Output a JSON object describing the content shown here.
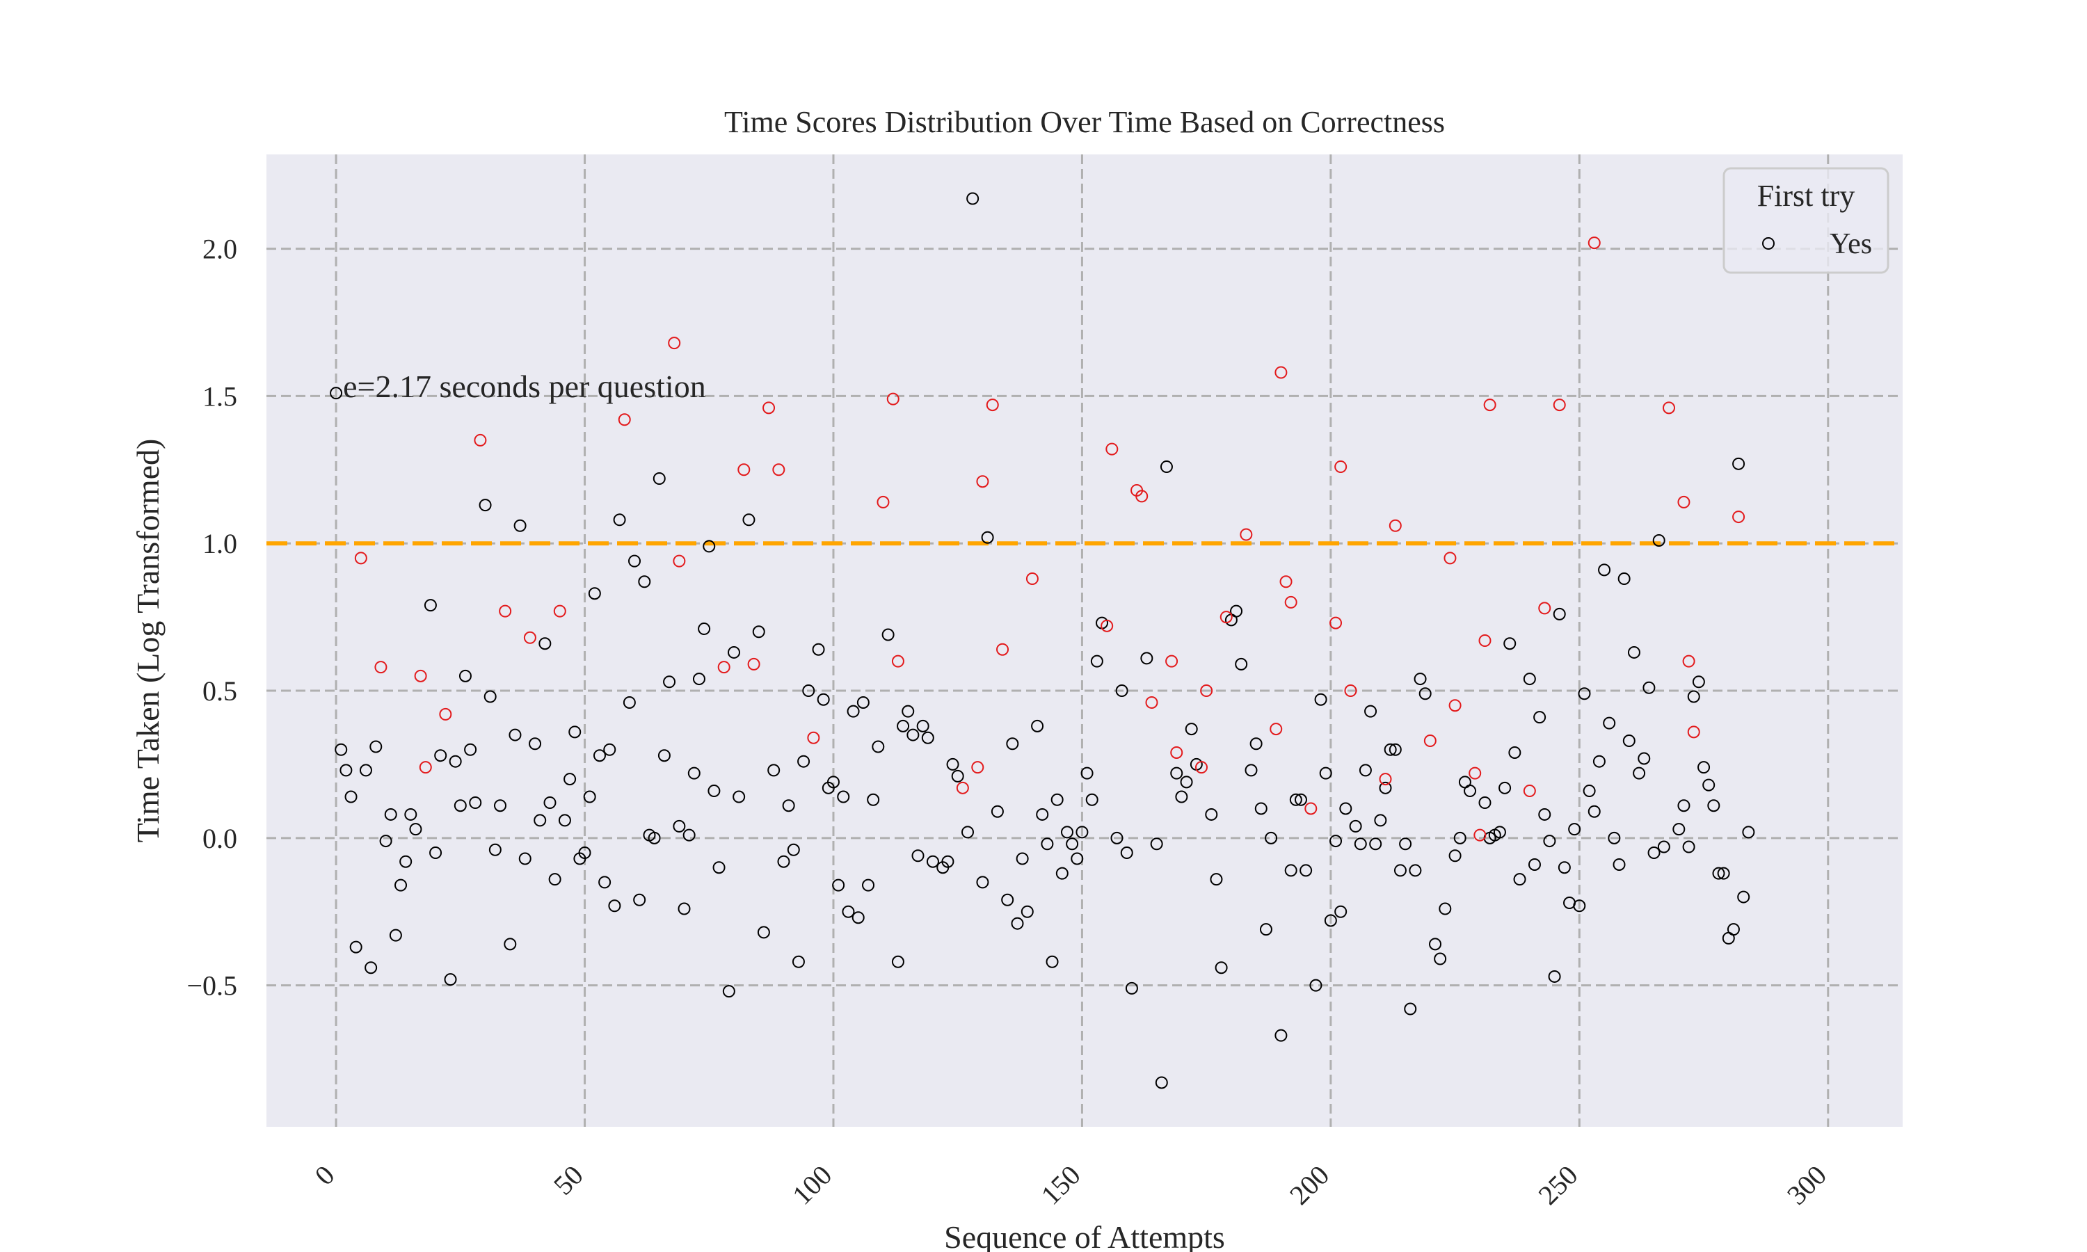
{
  "chart_data": {
    "type": "scatter",
    "title": "Time Scores Distribution Over Time Based on Correctness",
    "xlabel": "Sequence of Attempts",
    "ylabel": "Time Taken (Log Transformed)",
    "xlim": [
      -14,
      315
    ],
    "ylim": [
      -0.98,
      2.32
    ],
    "x_ticks": [
      0,
      50,
      100,
      150,
      200,
      250,
      300
    ],
    "y_ticks": [
      -0.5,
      0.0,
      0.5,
      1.0,
      1.5,
      2.0
    ],
    "y_tick_labels": [
      "−0.5",
      "0.0",
      "0.5",
      "1.0",
      "1.5",
      "2.0"
    ],
    "grid": true,
    "legend": {
      "title": "First try",
      "position": "top-right",
      "entries": [
        "Yes"
      ]
    },
    "reference_line": {
      "y": 1.0,
      "color": "#FFA500",
      "style": "dashed"
    },
    "annotation": {
      "text": "e=2.17 seconds per question",
      "x": 0,
      "y": 1.52
    },
    "series": [
      {
        "name": "Yes",
        "color": "#000000",
        "points": [
          [
            0,
            1.51
          ],
          [
            1,
            0.3
          ],
          [
            2,
            0.23
          ],
          [
            3,
            0.14
          ],
          [
            4,
            -0.37
          ],
          [
            6,
            0.23
          ],
          [
            7,
            -0.44
          ],
          [
            8,
            0.31
          ],
          [
            10,
            -0.01
          ],
          [
            11,
            0.08
          ],
          [
            12,
            -0.33
          ],
          [
            13,
            -0.16
          ],
          [
            14,
            -0.08
          ],
          [
            15,
            0.08
          ],
          [
            16,
            0.03
          ],
          [
            19,
            0.79
          ],
          [
            20,
            -0.05
          ],
          [
            21,
            0.28
          ],
          [
            23,
            -0.48
          ],
          [
            24,
            0.26
          ],
          [
            25,
            0.11
          ],
          [
            26,
            0.55
          ],
          [
            27,
            0.3
          ],
          [
            28,
            0.12
          ],
          [
            30,
            1.13
          ],
          [
            31,
            0.48
          ],
          [
            32,
            -0.04
          ],
          [
            33,
            0.11
          ],
          [
            35,
            -0.36
          ],
          [
            36,
            0.35
          ],
          [
            37,
            1.06
          ],
          [
            38,
            -0.07
          ],
          [
            40,
            0.32
          ],
          [
            41,
            0.06
          ],
          [
            42,
            0.66
          ],
          [
            43,
            0.12
          ],
          [
            44,
            -0.14
          ],
          [
            46,
            0.06
          ],
          [
            47,
            0.2
          ],
          [
            48,
            0.36
          ],
          [
            49,
            -0.07
          ],
          [
            50,
            -0.05
          ],
          [
            51,
            0.14
          ],
          [
            52,
            0.83
          ],
          [
            53,
            0.28
          ],
          [
            54,
            -0.15
          ],
          [
            55,
            0.3
          ],
          [
            56,
            -0.23
          ],
          [
            57,
            1.08
          ],
          [
            59,
            0.46
          ],
          [
            60,
            0.94
          ],
          [
            61,
            -0.21
          ],
          [
            62,
            0.87
          ],
          [
            63,
            0.01
          ],
          [
            64,
            0.0
          ],
          [
            65,
            1.22
          ],
          [
            66,
            0.28
          ],
          [
            67,
            0.53
          ],
          [
            69,
            0.04
          ],
          [
            70,
            -0.24
          ],
          [
            71,
            0.01
          ],
          [
            72,
            0.22
          ],
          [
            73,
            0.54
          ],
          [
            74,
            0.71
          ],
          [
            75,
            0.99
          ],
          [
            76,
            0.16
          ],
          [
            77,
            -0.1
          ],
          [
            79,
            -0.52
          ],
          [
            80,
            0.63
          ],
          [
            81,
            0.14
          ],
          [
            83,
            1.08
          ],
          [
            85,
            0.7
          ],
          [
            86,
            -0.32
          ],
          [
            88,
            0.23
          ],
          [
            90,
            -0.08
          ],
          [
            91,
            0.11
          ],
          [
            92,
            -0.04
          ],
          [
            93,
            -0.42
          ],
          [
            94,
            0.26
          ],
          [
            95,
            0.5
          ],
          [
            97,
            0.64
          ],
          [
            98,
            0.47
          ],
          [
            99,
            0.17
          ],
          [
            100,
            0.19
          ],
          [
            101,
            -0.16
          ],
          [
            102,
            0.14
          ],
          [
            103,
            -0.25
          ],
          [
            104,
            0.43
          ],
          [
            105,
            -0.27
          ],
          [
            106,
            0.46
          ],
          [
            107,
            -0.16
          ],
          [
            108,
            0.13
          ],
          [
            109,
            0.31
          ],
          [
            111,
            0.69
          ],
          [
            113,
            -0.42
          ],
          [
            114,
            0.38
          ],
          [
            115,
            0.43
          ],
          [
            116,
            0.35
          ],
          [
            117,
            -0.06
          ],
          [
            118,
            0.38
          ],
          [
            119,
            0.34
          ],
          [
            120,
            -0.08
          ],
          [
            122,
            -0.1
          ],
          [
            123,
            -0.08
          ],
          [
            124,
            0.25
          ],
          [
            125,
            0.21
          ],
          [
            127,
            0.02
          ],
          [
            128,
            2.17
          ],
          [
            130,
            -0.15
          ],
          [
            131,
            1.02
          ],
          [
            133,
            0.09
          ],
          [
            135,
            -0.21
          ],
          [
            136,
            0.32
          ],
          [
            137,
            -0.29
          ],
          [
            138,
            -0.07
          ],
          [
            139,
            -0.25
          ],
          [
            141,
            0.38
          ],
          [
            142,
            0.08
          ],
          [
            143,
            -0.02
          ],
          [
            144,
            -0.42
          ],
          [
            145,
            0.13
          ],
          [
            146,
            -0.12
          ],
          [
            147,
            0.02
          ],
          [
            148,
            -0.02
          ],
          [
            149,
            -0.07
          ],
          [
            150,
            0.02
          ],
          [
            151,
            0.22
          ],
          [
            152,
            0.13
          ],
          [
            153,
            0.6
          ],
          [
            154,
            0.73
          ],
          [
            157,
            0.0
          ],
          [
            158,
            0.5
          ],
          [
            159,
            -0.05
          ],
          [
            160,
            -0.51
          ],
          [
            163,
            0.61
          ],
          [
            165,
            -0.02
          ],
          [
            166,
            -0.83
          ],
          [
            167,
            1.26
          ],
          [
            169,
            0.22
          ],
          [
            170,
            0.14
          ],
          [
            171,
            0.19
          ],
          [
            172,
            0.37
          ],
          [
            173,
            0.25
          ],
          [
            176,
            0.08
          ],
          [
            177,
            -0.14
          ],
          [
            178,
            -0.44
          ],
          [
            180,
            0.74
          ],
          [
            181,
            0.77
          ],
          [
            182,
            0.59
          ],
          [
            184,
            0.23
          ],
          [
            185,
            0.32
          ],
          [
            186,
            0.1
          ],
          [
            187,
            -0.31
          ],
          [
            188,
            0.0
          ],
          [
            190,
            -0.67
          ],
          [
            192,
            -0.11
          ],
          [
            193,
            0.13
          ],
          [
            194,
            0.13
          ],
          [
            195,
            -0.11
          ],
          [
            197,
            -0.5
          ],
          [
            198,
            0.47
          ],
          [
            199,
            0.22
          ],
          [
            200,
            -0.28
          ],
          [
            201,
            -0.01
          ],
          [
            202,
            -0.25
          ],
          [
            203,
            0.1
          ],
          [
            205,
            0.04
          ],
          [
            206,
            -0.02
          ],
          [
            207,
            0.23
          ],
          [
            208,
            0.43
          ],
          [
            209,
            -0.02
          ],
          [
            210,
            0.06
          ],
          [
            211,
            0.17
          ],
          [
            212,
            0.3
          ],
          [
            213,
            0.3
          ],
          [
            214,
            -0.11
          ],
          [
            215,
            -0.02
          ],
          [
            216,
            -0.58
          ],
          [
            217,
            -0.11
          ],
          [
            218,
            0.54
          ],
          [
            219,
            0.49
          ],
          [
            221,
            -0.36
          ],
          [
            222,
            -0.41
          ],
          [
            223,
            -0.24
          ],
          [
            225,
            -0.06
          ],
          [
            226,
            0.0
          ],
          [
            227,
            0.19
          ],
          [
            228,
            0.16
          ],
          [
            231,
            0.12
          ],
          [
            232,
            0.0
          ],
          [
            233,
            0.01
          ],
          [
            234,
            0.02
          ],
          [
            235,
            0.17
          ],
          [
            236,
            0.66
          ],
          [
            237,
            0.29
          ],
          [
            238,
            -0.14
          ],
          [
            240,
            0.54
          ],
          [
            241,
            -0.09
          ],
          [
            242,
            0.41
          ],
          [
            243,
            0.08
          ],
          [
            244,
            -0.01
          ],
          [
            245,
            -0.47
          ],
          [
            246,
            0.76
          ],
          [
            247,
            -0.1
          ],
          [
            248,
            -0.22
          ],
          [
            249,
            0.03
          ],
          [
            250,
            -0.23
          ],
          [
            251,
            0.49
          ],
          [
            252,
            0.16
          ],
          [
            253,
            0.09
          ],
          [
            254,
            0.26
          ],
          [
            255,
            0.91
          ],
          [
            256,
            0.39
          ],
          [
            257,
            0.0
          ],
          [
            258,
            -0.09
          ],
          [
            259,
            0.88
          ],
          [
            260,
            0.33
          ],
          [
            261,
            0.63
          ],
          [
            262,
            0.22
          ],
          [
            263,
            0.27
          ],
          [
            264,
            0.51
          ],
          [
            265,
            -0.05
          ],
          [
            266,
            1.01
          ],
          [
            267,
            -0.03
          ],
          [
            270,
            0.03
          ],
          [
            271,
            0.11
          ],
          [
            272,
            -0.03
          ],
          [
            273,
            0.48
          ],
          [
            274,
            0.53
          ],
          [
            275,
            0.24
          ],
          [
            276,
            0.18
          ],
          [
            277,
            0.11
          ],
          [
            278,
            -0.12
          ],
          [
            279,
            -0.12
          ],
          [
            280,
            -0.34
          ],
          [
            281,
            -0.31
          ],
          [
            282,
            1.27
          ],
          [
            283,
            -0.2
          ],
          [
            284,
            0.02
          ]
        ]
      },
      {
        "color": "#E31A1C",
        "points": [
          [
            5,
            0.95
          ],
          [
            9,
            0.58
          ],
          [
            17,
            0.55
          ],
          [
            18,
            0.24
          ],
          [
            22,
            0.42
          ],
          [
            29,
            1.35
          ],
          [
            34,
            0.77
          ],
          [
            39,
            0.68
          ],
          [
            45,
            0.77
          ],
          [
            58,
            1.42
          ],
          [
            68,
            1.68
          ],
          [
            69,
            0.94
          ],
          [
            78,
            0.58
          ],
          [
            82,
            1.25
          ],
          [
            84,
            0.59
          ],
          [
            87,
            1.46
          ],
          [
            89,
            1.25
          ],
          [
            96,
            0.34
          ],
          [
            110,
            1.14
          ],
          [
            112,
            1.49
          ],
          [
            113,
            0.6
          ],
          [
            126,
            0.17
          ],
          [
            129,
            0.24
          ],
          [
            130,
            1.21
          ],
          [
            132,
            1.47
          ],
          [
            134,
            0.64
          ],
          [
            140,
            0.88
          ],
          [
            155,
            0.72
          ],
          [
            156,
            1.32
          ],
          [
            161,
            1.18
          ],
          [
            162,
            1.16
          ],
          [
            164,
            0.46
          ],
          [
            168,
            0.6
          ],
          [
            169,
            0.29
          ],
          [
            174,
            0.24
          ],
          [
            175,
            0.5
          ],
          [
            179,
            0.75
          ],
          [
            183,
            1.03
          ],
          [
            189,
            0.37
          ],
          [
            190,
            1.58
          ],
          [
            191,
            0.87
          ],
          [
            192,
            0.8
          ],
          [
            196,
            0.1
          ],
          [
            201,
            0.73
          ],
          [
            202,
            1.26
          ],
          [
            204,
            0.5
          ],
          [
            211,
            0.2
          ],
          [
            213,
            1.06
          ],
          [
            220,
            0.33
          ],
          [
            224,
            0.95
          ],
          [
            225,
            0.45
          ],
          [
            229,
            0.22
          ],
          [
            230,
            0.01
          ],
          [
            231,
            0.67
          ],
          [
            232,
            1.47
          ],
          [
            240,
            0.16
          ],
          [
            243,
            0.78
          ],
          [
            246,
            1.47
          ],
          [
            253,
            2.02
          ],
          [
            268,
            1.46
          ],
          [
            271,
            1.14
          ],
          [
            272,
            0.6
          ],
          [
            273,
            0.36
          ],
          [
            282,
            1.09
          ]
        ]
      }
    ]
  }
}
